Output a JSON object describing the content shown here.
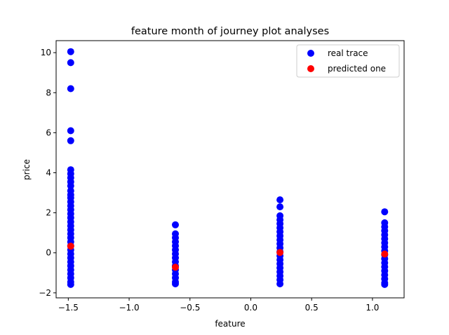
{
  "chart_data": {
    "type": "scatter",
    "title": "feature month of journey plot analyses",
    "xlabel": "feature",
    "ylabel": "price",
    "xlim": [
      -1.6,
      1.26
    ],
    "ylim": [
      -2.25,
      10.6
    ],
    "xticks": [
      -1.5,
      -1.0,
      -0.5,
      0.0,
      0.5,
      1.0
    ],
    "xtick_labels": [
      "−1.5",
      "−1.0",
      "−0.5",
      "0.0",
      "0.5",
      "1.0"
    ],
    "yticks": [
      -2,
      0,
      2,
      4,
      6,
      8,
      10
    ],
    "ytick_labels": [
      "−2",
      "0",
      "2",
      "4",
      "6",
      "8",
      "10"
    ],
    "grid": false,
    "legend_position": "top-right",
    "series": [
      {
        "name": "real trace",
        "color": "#0000ff",
        "points": [
          {
            "x": -1.48,
            "y": 10.05
          },
          {
            "x": -1.48,
            "y": 9.5
          },
          {
            "x": -1.48,
            "y": 8.2
          },
          {
            "x": -1.48,
            "y": 6.1
          },
          {
            "x": -1.48,
            "y": 5.6
          },
          {
            "x": -1.48,
            "y": 4.15
          },
          {
            "x": -1.48,
            "y": 3.95
          },
          {
            "x": -1.48,
            "y": 3.75
          },
          {
            "x": -1.48,
            "y": 3.55
          },
          {
            "x": -1.48,
            "y": 3.35
          },
          {
            "x": -1.48,
            "y": 3.1
          },
          {
            "x": -1.48,
            "y": 2.9
          },
          {
            "x": -1.48,
            "y": 2.75
          },
          {
            "x": -1.48,
            "y": 2.55
          },
          {
            "x": -1.48,
            "y": 2.35
          },
          {
            "x": -1.48,
            "y": 2.15
          },
          {
            "x": -1.48,
            "y": 1.95
          },
          {
            "x": -1.48,
            "y": 1.75
          },
          {
            "x": -1.48,
            "y": 1.55
          },
          {
            "x": -1.48,
            "y": 1.35
          },
          {
            "x": -1.48,
            "y": 1.15
          },
          {
            "x": -1.48,
            "y": 0.95
          },
          {
            "x": -1.48,
            "y": 0.75
          },
          {
            "x": -1.48,
            "y": 0.55
          },
          {
            "x": -1.48,
            "y": 0.35
          },
          {
            "x": -1.48,
            "y": 0.15
          },
          {
            "x": -1.48,
            "y": -0.05
          },
          {
            "x": -1.48,
            "y": -0.25
          },
          {
            "x": -1.48,
            "y": -0.45
          },
          {
            "x": -1.48,
            "y": -0.65
          },
          {
            "x": -1.48,
            "y": -0.85
          },
          {
            "x": -1.48,
            "y": -1.05
          },
          {
            "x": -1.48,
            "y": -1.25
          },
          {
            "x": -1.48,
            "y": -1.45
          },
          {
            "x": -1.48,
            "y": -1.58
          },
          {
            "x": -0.62,
            "y": 1.4
          },
          {
            "x": -0.62,
            "y": 0.95
          },
          {
            "x": -0.62,
            "y": 0.75
          },
          {
            "x": -0.62,
            "y": 0.55
          },
          {
            "x": -0.62,
            "y": 0.35
          },
          {
            "x": -0.62,
            "y": 0.15
          },
          {
            "x": -0.62,
            "y": -0.05
          },
          {
            "x": -0.62,
            "y": -0.25
          },
          {
            "x": -0.62,
            "y": -0.45
          },
          {
            "x": -0.62,
            "y": -0.65
          },
          {
            "x": -0.62,
            "y": -0.85
          },
          {
            "x": -0.62,
            "y": -1.05
          },
          {
            "x": -0.62,
            "y": -1.25
          },
          {
            "x": -0.62,
            "y": -1.45
          },
          {
            "x": -0.62,
            "y": -1.55
          },
          {
            "x": 0.24,
            "y": 2.65
          },
          {
            "x": 0.24,
            "y": 2.3
          },
          {
            "x": 0.24,
            "y": 1.85
          },
          {
            "x": 0.24,
            "y": 1.65
          },
          {
            "x": 0.24,
            "y": 1.45
          },
          {
            "x": 0.24,
            "y": 1.25
          },
          {
            "x": 0.24,
            "y": 1.05
          },
          {
            "x": 0.24,
            "y": 0.85
          },
          {
            "x": 0.24,
            "y": 0.65
          },
          {
            "x": 0.24,
            "y": 0.45
          },
          {
            "x": 0.24,
            "y": 0.25
          },
          {
            "x": 0.24,
            "y": 0.05
          },
          {
            "x": 0.24,
            "y": -0.15
          },
          {
            "x": 0.24,
            "y": -0.35
          },
          {
            "x": 0.24,
            "y": -0.55
          },
          {
            "x": 0.24,
            "y": -0.75
          },
          {
            "x": 0.24,
            "y": -0.95
          },
          {
            "x": 0.24,
            "y": -1.15
          },
          {
            "x": 0.24,
            "y": -1.35
          },
          {
            "x": 0.24,
            "y": -1.55
          },
          {
            "x": 1.1,
            "y": 2.05
          },
          {
            "x": 1.1,
            "y": 1.5
          },
          {
            "x": 1.1,
            "y": 1.3
          },
          {
            "x": 1.1,
            "y": 1.1
          },
          {
            "x": 1.1,
            "y": 0.9
          },
          {
            "x": 1.1,
            "y": 0.7
          },
          {
            "x": 1.1,
            "y": 0.5
          },
          {
            "x": 1.1,
            "y": 0.3
          },
          {
            "x": 1.1,
            "y": 0.1
          },
          {
            "x": 1.1,
            "y": -0.1
          },
          {
            "x": 1.1,
            "y": -0.3
          },
          {
            "x": 1.1,
            "y": -0.5
          },
          {
            "x": 1.1,
            "y": -0.7
          },
          {
            "x": 1.1,
            "y": -0.9
          },
          {
            "x": 1.1,
            "y": -1.1
          },
          {
            "x": 1.1,
            "y": -1.3
          },
          {
            "x": 1.1,
            "y": -1.5
          },
          {
            "x": 1.1,
            "y": -1.58
          }
        ]
      },
      {
        "name": "predicted one",
        "color": "#ff0000",
        "points": [
          {
            "x": -1.48,
            "y": 0.33
          },
          {
            "x": -0.62,
            "y": -0.72
          },
          {
            "x": 0.24,
            "y": 0.02
          },
          {
            "x": 1.1,
            "y": -0.06
          }
        ]
      }
    ]
  }
}
